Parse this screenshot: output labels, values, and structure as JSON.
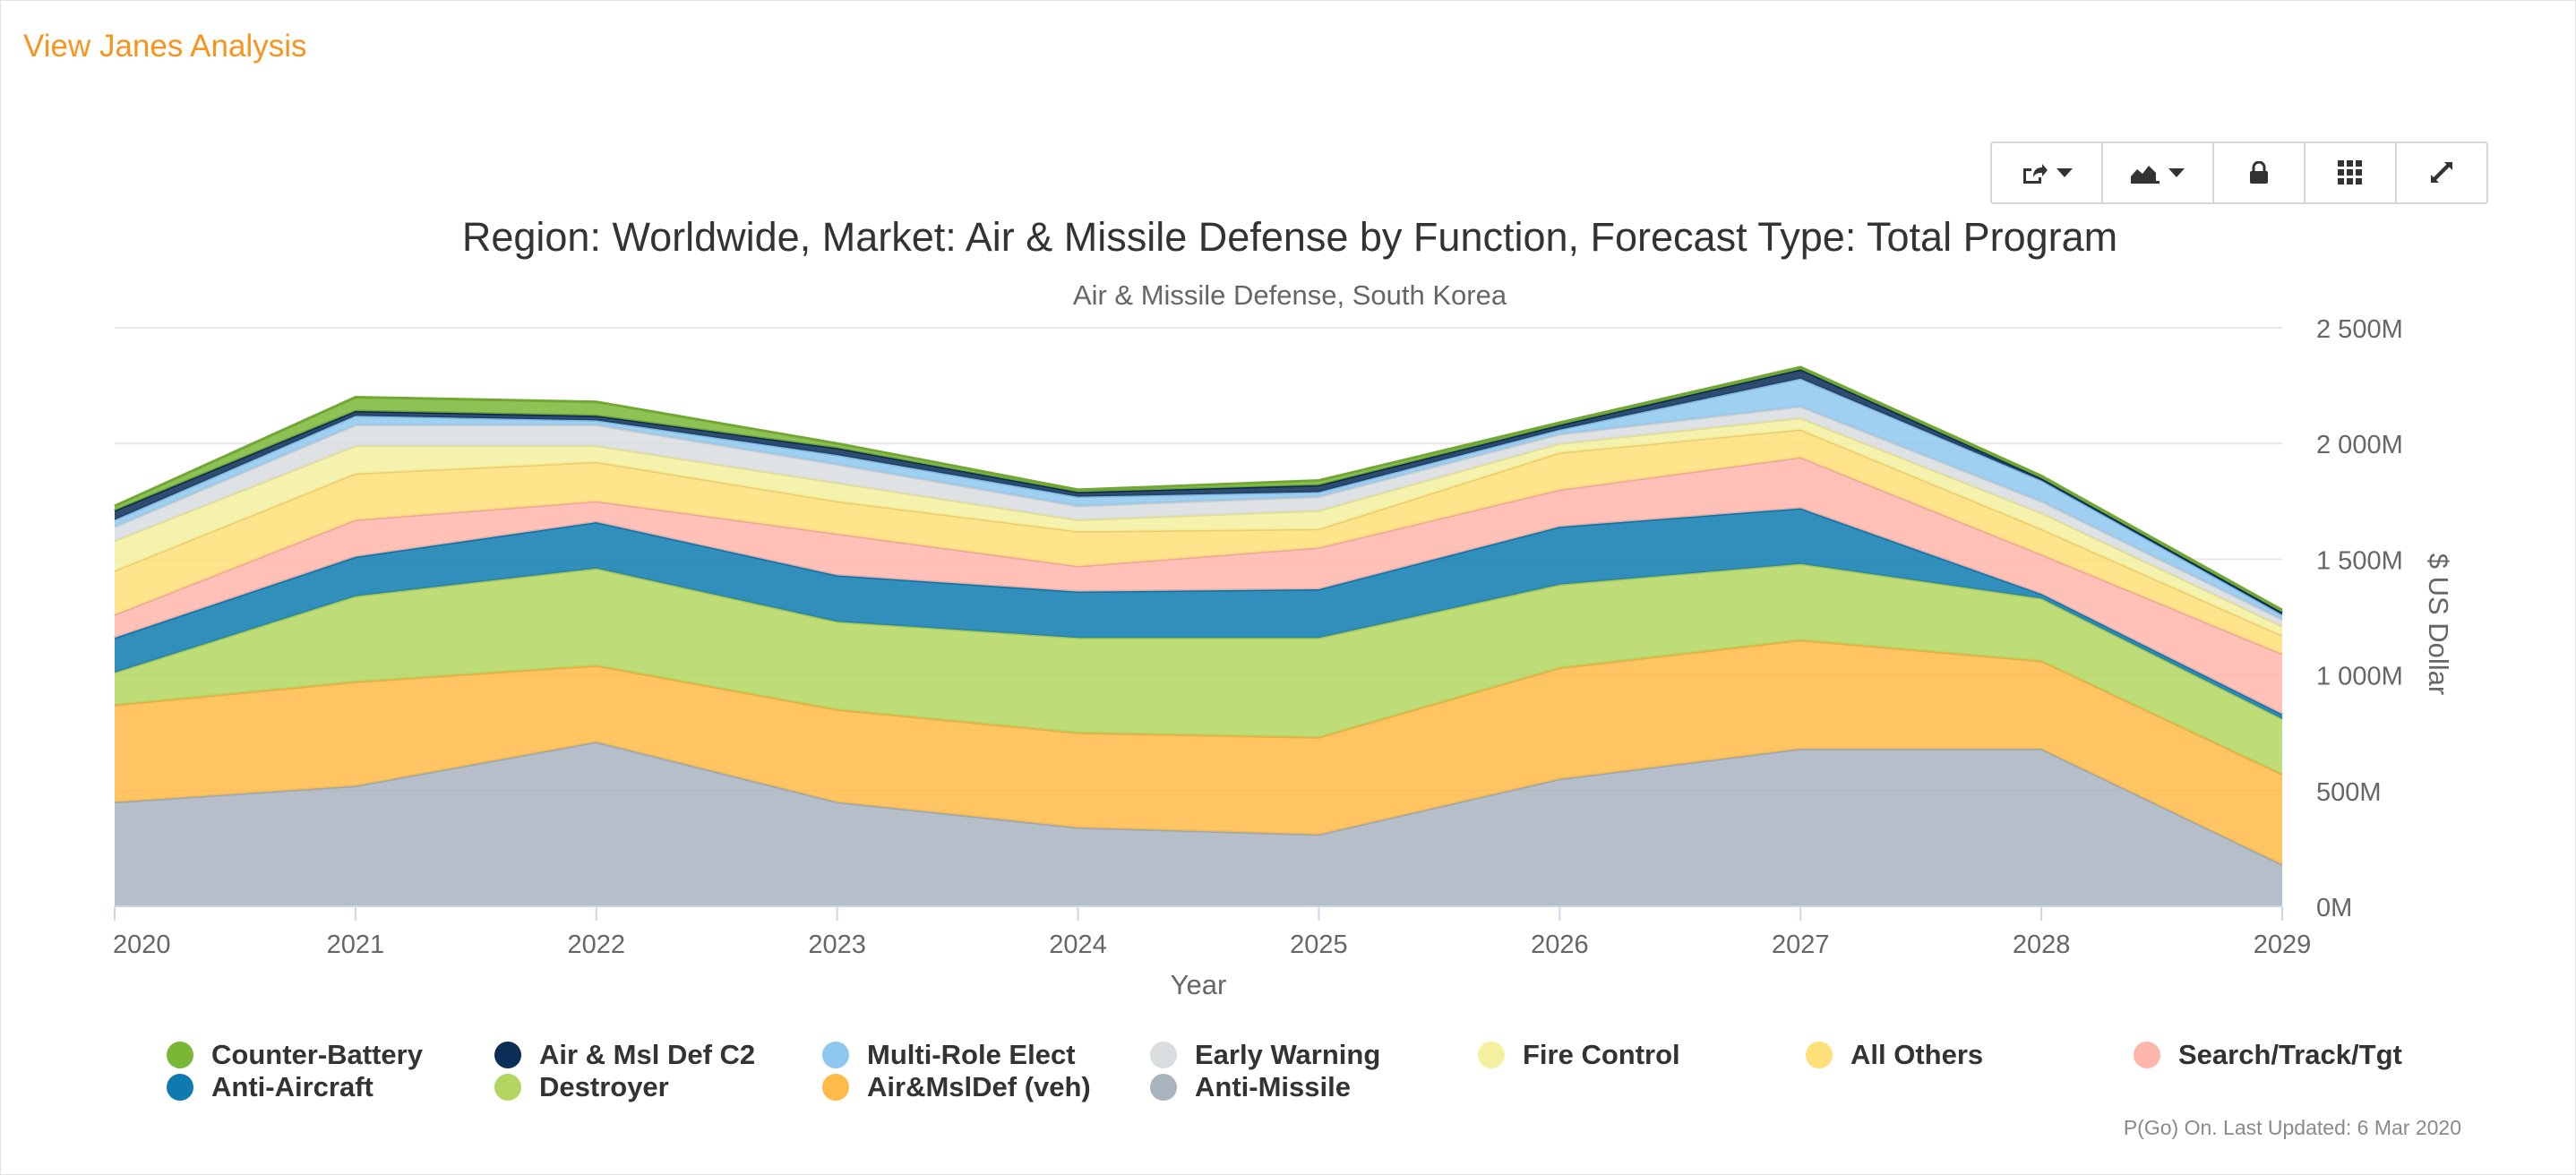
{
  "link": {
    "label": "View Janes Analysis"
  },
  "toolbar": {
    "icons": [
      "share-icon",
      "chart-type-icon",
      "lock-icon",
      "grid-icon",
      "expand-icon"
    ]
  },
  "footnote": "P(Go) On. Last Updated: 6 Mar 2020",
  "chart_data": {
    "type": "area",
    "stacked": true,
    "title": "Region: Worldwide, Market: Air & Missile Defense by Function, Forecast Type: Total Program",
    "subtitle": "Air & Missile Defense, South Korea",
    "xlabel": "Year",
    "ylabel": "$ US Dollar",
    "y_axis_side": "right",
    "ylim": [
      0,
      2500
    ],
    "yticks": [
      0,
      500,
      1000,
      1500,
      2000,
      2500
    ],
    "ytick_labels": [
      "0M",
      "500M",
      "1 000M",
      "1 500M",
      "2 000M",
      "2 500M"
    ],
    "categories": [
      "2020",
      "2021",
      "2022",
      "2023",
      "2024",
      "2025",
      "2026",
      "2027",
      "2028",
      "2029"
    ],
    "series": [
      {
        "name": "Anti-Missile",
        "color": "#a9b4bf",
        "values": [
          450,
          520,
          710,
          450,
          340,
          310,
          550,
          680,
          680,
          180
        ]
      },
      {
        "name": "Air&MslDef (veh)",
        "color": "#ffbb48",
        "values": [
          420,
          450,
          330,
          400,
          410,
          420,
          480,
          470,
          380,
          390
        ]
      },
      {
        "name": "Destroyer",
        "color": "#b3d660",
        "values": [
          140,
          370,
          420,
          380,
          410,
          430,
          360,
          330,
          270,
          240
        ]
      },
      {
        "name": "Anti-Aircraft",
        "color": "#0e7bb0",
        "values": [
          150,
          170,
          200,
          200,
          200,
          210,
          250,
          240,
          20,
          20
        ]
      },
      {
        "name": "Search/Track/Tgt",
        "color": "#ffb6aa",
        "values": [
          100,
          160,
          90,
          180,
          110,
          180,
          160,
          220,
          170,
          260
        ]
      },
      {
        "name": "All Others",
        "color": "#ffdf78",
        "values": [
          190,
          200,
          170,
          140,
          150,
          80,
          160,
          120,
          110,
          80
        ]
      },
      {
        "name": "Fire Control",
        "color": "#f3f0a0",
        "values": [
          130,
          120,
          70,
          80,
          50,
          80,
          40,
          50,
          70,
          40
        ]
      },
      {
        "name": "Early Warning",
        "color": "#d9dde0",
        "values": [
          60,
          90,
          90,
          80,
          60,
          60,
          40,
          50,
          50,
          30
        ]
      },
      {
        "name": "Multi-Role Elect",
        "color": "#8ec8ee",
        "values": [
          30,
          40,
          20,
          40,
          40,
          20,
          20,
          120,
          90,
          20
        ]
      },
      {
        "name": "Air & Msl Def C2",
        "color": "#0b2d56",
        "values": [
          40,
          20,
          20,
          30,
          20,
          30,
          20,
          40,
          10,
          10
        ]
      },
      {
        "name": "Counter-Battery",
        "color": "#7ab737",
        "values": [
          20,
          60,
          60,
          20,
          10,
          20,
          10,
          10,
          10,
          10
        ]
      }
    ],
    "legend": {
      "placement": "bottom",
      "rows": [
        [
          "Counter-Battery",
          "Air & Msl Def C2",
          "Multi-Role Elect",
          "Early Warning",
          "Fire Control",
          "All Others",
          "Search/Track/Tgt"
        ],
        [
          "Anti-Aircraft",
          "Destroyer",
          "Air&MslDef (veh)",
          "Anti-Missile"
        ]
      ]
    }
  }
}
